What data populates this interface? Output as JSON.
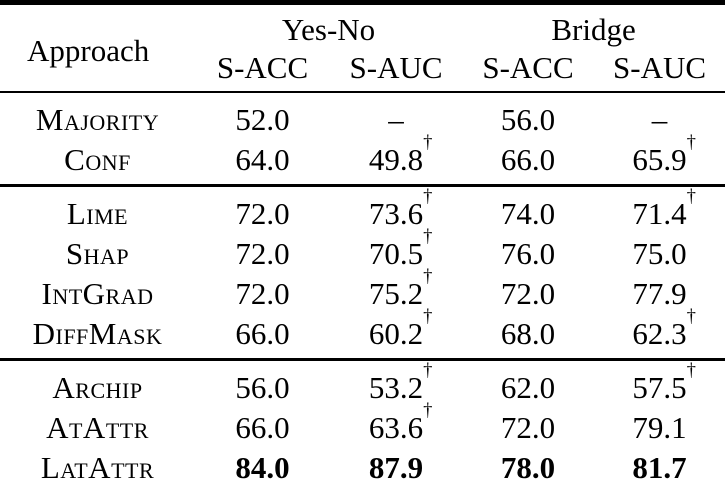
{
  "page": {
    "background_color": "#ffffff",
    "text_color": "#000000"
  },
  "table": {
    "dagger_symbol": "†",
    "dash_symbol": "–",
    "header": {
      "approach": "Approach",
      "col_groups": [
        {
          "label": "Yes-No",
          "subcolumns": [
            "S-ACC",
            "S-AUC"
          ]
        },
        {
          "label": "Bridge",
          "subcolumns": [
            "S-ACC",
            "S-AUC"
          ]
        }
      ]
    },
    "groups": [
      {
        "rows": [
          {
            "approach": "Majority",
            "values": [
              {
                "v": "52.0"
              },
              {
                "v": "–"
              },
              {
                "v": "56.0"
              },
              {
                "v": "–"
              }
            ]
          },
          {
            "approach": "Conf",
            "values": [
              {
                "v": "64.0"
              },
              {
                "v": "49.8",
                "dagger": true
              },
              {
                "v": "66.0"
              },
              {
                "v": "65.9",
                "dagger": true
              }
            ]
          }
        ]
      },
      {
        "rows": [
          {
            "approach": "Lime",
            "values": [
              {
                "v": "72.0"
              },
              {
                "v": "73.6",
                "dagger": true
              },
              {
                "v": "74.0"
              },
              {
                "v": "71.4",
                "dagger": true
              }
            ]
          },
          {
            "approach": "Shap",
            "values": [
              {
                "v": "72.0"
              },
              {
                "v": "70.5",
                "dagger": true
              },
              {
                "v": "76.0"
              },
              {
                "v": "75.0"
              }
            ]
          },
          {
            "approach": "IntGrad",
            "values": [
              {
                "v": "72.0"
              },
              {
                "v": "75.2",
                "dagger": true
              },
              {
                "v": "72.0"
              },
              {
                "v": "77.9"
              }
            ]
          },
          {
            "approach": "DiffMask",
            "values": [
              {
                "v": "66.0"
              },
              {
                "v": "60.2",
                "dagger": true
              },
              {
                "v": "68.0"
              },
              {
                "v": "62.3",
                "dagger": true
              }
            ]
          }
        ]
      },
      {
        "rows": [
          {
            "approach": "Archip",
            "values": [
              {
                "v": "56.0"
              },
              {
                "v": "53.2",
                "dagger": true
              },
              {
                "v": "62.0"
              },
              {
                "v": "57.5",
                "dagger": true
              }
            ]
          },
          {
            "approach": "AtAttr",
            "values": [
              {
                "v": "66.0"
              },
              {
                "v": "63.6",
                "dagger": true
              },
              {
                "v": "72.0"
              },
              {
                "v": "79.1"
              }
            ]
          },
          {
            "approach": "LatAttr",
            "bold_values": true,
            "values": [
              {
                "v": "84.0"
              },
              {
                "v": "87.9"
              },
              {
                "v": "78.0"
              },
              {
                "v": "81.7"
              }
            ]
          }
        ]
      }
    ]
  }
}
